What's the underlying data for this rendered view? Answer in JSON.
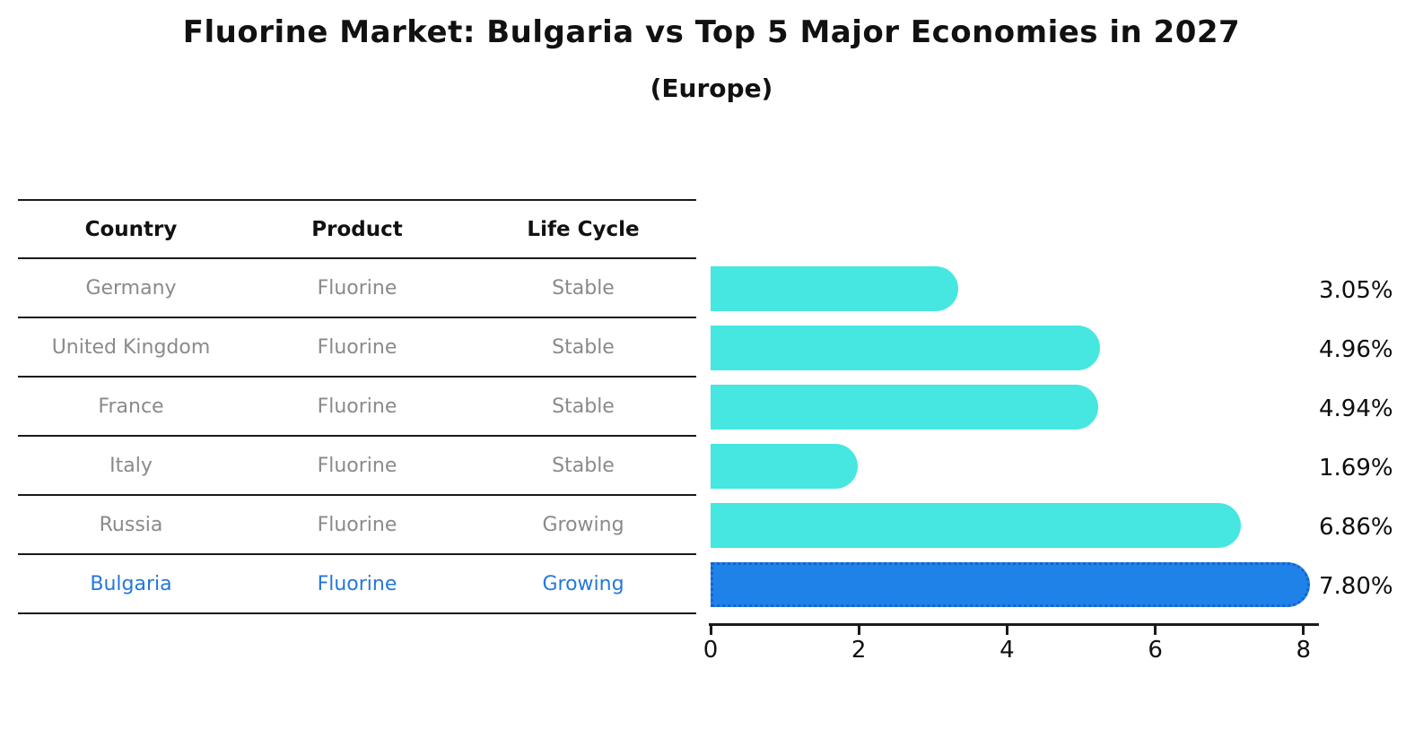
{
  "title": "Fluorine Market: Bulgaria vs Top 5 Major Economies in 2027",
  "subtitle": "(Europe)",
  "table": {
    "headers": [
      "Country",
      "Product",
      "Life Cycle"
    ],
    "rows": [
      {
        "country": "Germany",
        "product": "Fluorine",
        "life_cycle": "Stable",
        "highlight": false
      },
      {
        "country": "United Kingdom",
        "product": "Fluorine",
        "life_cycle": "Stable",
        "highlight": false
      },
      {
        "country": "France",
        "product": "Fluorine",
        "life_cycle": "Stable",
        "highlight": false
      },
      {
        "country": "Italy",
        "product": "Fluorine",
        "life_cycle": "Stable",
        "highlight": false
      },
      {
        "country": "Russia",
        "product": "Fluorine",
        "life_cycle": "Growing",
        "highlight": false
      },
      {
        "country": "Bulgaria",
        "product": "Fluorine",
        "life_cycle": "Growing",
        "highlight": true
      }
    ]
  },
  "chart_data": {
    "type": "bar",
    "orientation": "horizontal",
    "title": "Fluorine Market: Bulgaria vs Top 5 Major Economies in 2027",
    "subtitle": "(Europe)",
    "categories": [
      "Germany",
      "United Kingdom",
      "France",
      "Italy",
      "Russia",
      "Bulgaria"
    ],
    "values": [
      3.05,
      4.96,
      4.94,
      1.69,
      6.86,
      7.8
    ],
    "value_labels": [
      "3.05%",
      "4.96%",
      "4.94%",
      "1.69%",
      "6.86%",
      "7.80%"
    ],
    "x_ticks": [
      0,
      2,
      4,
      6,
      8
    ],
    "xlim": [
      0,
      8.2
    ],
    "grid": false,
    "legend": false,
    "highlight_index": 5
  },
  "colors": {
    "bar": "#45E7E0",
    "highlight_bar": "#1E82E8",
    "highlight_border": "#1563CF",
    "row_text": "#8a8a8a",
    "highlight_text": "#2478DB",
    "header_text": "#111111",
    "line": "#1a1a1a",
    "value_text": "#0d0d0d"
  }
}
